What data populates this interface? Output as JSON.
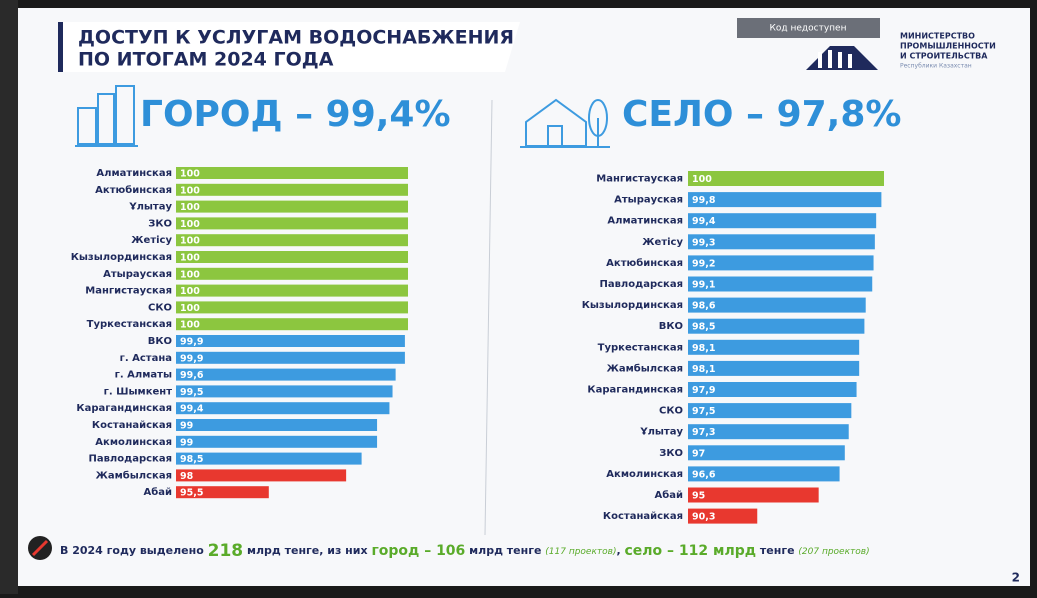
{
  "header": {
    "title_line1": "ДОСТУП К УСЛУГАМ ВОДОСНАБЖЕНИЯ",
    "title_line2": "ПО ИТОГАМ 2024 ГОДА",
    "code_badge": "Код недоступен",
    "ministry_line1": "МИНИСТЕРСТВО",
    "ministry_line2": "ПРОМЫШЛЕННОСТИ",
    "ministry_line3": "И СТРОИТЕЛЬСТВА",
    "ministry_line4": "Республики Казахстан"
  },
  "chart_data": [
    {
      "type": "hbar",
      "title": "ГОРОД – 99,4%",
      "categories": [
        "Алматинская",
        "Актюбинская",
        "Ұлытау",
        "ЗКО",
        "Жетісу",
        "Кызылординская",
        "Атырауская",
        "Мангистауская",
        "СКО",
        "Туркестанская",
        "ВКО",
        "г. Астана",
        "г. Алматы",
        "г. Шымкент",
        "Карагандинская",
        "Костанайская",
        "Акмолинская",
        "Павлодарская",
        "Жамбылская",
        "Абай"
      ],
      "values": [
        100,
        100,
        100,
        100,
        100,
        100,
        100,
        100,
        100,
        100,
        99.9,
        99.9,
        99.6,
        99.5,
        99.4,
        99,
        99,
        98.5,
        98,
        95.5
      ],
      "value_labels": [
        "100",
        "100",
        "100",
        "100",
        "100",
        "100",
        "100",
        "100",
        "100",
        "100",
        "99,9",
        "99,9",
        "99,6",
        "99,5",
        "99,4",
        "99",
        "99",
        "98,5",
        "98",
        "95,5"
      ],
      "colors": [
        "#8cc63f",
        "#8cc63f",
        "#8cc63f",
        "#8cc63f",
        "#8cc63f",
        "#8cc63f",
        "#8cc63f",
        "#8cc63f",
        "#8cc63f",
        "#8cc63f",
        "#3d9be0",
        "#3d9be0",
        "#3d9be0",
        "#3d9be0",
        "#3d9be0",
        "#3d9be0",
        "#3d9be0",
        "#3d9be0",
        "#e8382f",
        "#e8382f"
      ],
      "xlim": [
        92.5,
        100
      ]
    },
    {
      "type": "hbar",
      "title": "СЕЛО – 97,8%",
      "categories": [
        "Мангистауская",
        "Атырауская",
        "Алматинская",
        "Жетісу",
        "Актюбинская",
        "Павлодарская",
        "Кызылординская",
        "ВКО",
        "Туркестанская",
        "Жамбылская",
        "Карагандинская",
        "СКО",
        "Ұлытау",
        "ЗКО",
        "Акмолинская",
        "Абай",
        "Костанайская"
      ],
      "values": [
        100,
        99.8,
        99.4,
        99.3,
        99.2,
        99.1,
        98.6,
        98.5,
        98.1,
        98.1,
        97.9,
        97.5,
        97.3,
        97,
        96.6,
        95,
        90.3
      ],
      "value_labels": [
        "100",
        "99,8",
        "99,4",
        "99,3",
        "99,2",
        "99,1",
        "98,6",
        "98,5",
        "98,1",
        "98,1",
        "97,9",
        "97,5",
        "97,3",
        "97",
        "96,6",
        "95",
        "90,3"
      ],
      "colors": [
        "#8cc63f",
        "#3d9be0",
        "#3d9be0",
        "#3d9be0",
        "#3d9be0",
        "#3d9be0",
        "#3d9be0",
        "#3d9be0",
        "#3d9be0",
        "#3d9be0",
        "#3d9be0",
        "#3d9be0",
        "#3d9be0",
        "#3d9be0",
        "#3d9be0",
        "#e8382f",
        "#e8382f"
      ],
      "xlim": [
        85,
        100
      ]
    }
  ],
  "footer": {
    "text1": "В 2024 году выделено",
    "amount": "218",
    "text2": "млрд тенге, из них",
    "city": "город – 106",
    "text3": "млрд тенге",
    "city_projects": "(117 проектов)",
    "comma": ",",
    "village": "село – 112 млрд",
    "text4": "тенге",
    "village_projects": "(207 проектов)",
    "page_number": "2"
  }
}
